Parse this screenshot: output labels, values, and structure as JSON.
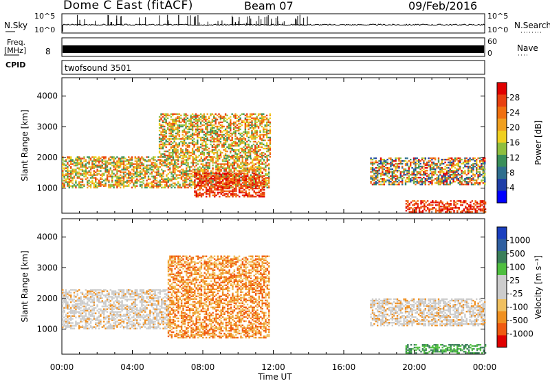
{
  "header": {
    "radar": "Dome C East (fitACF)",
    "beam": "Beam 07",
    "date": "09/Feb/2016"
  },
  "aux_panels": {
    "nsky_label": "N.Sky",
    "nsky_top": "10^5",
    "nsky_bottom": "10^0",
    "nsearch_label": "N.Search",
    "nsearch_top": "10^5",
    "nsearch_bottom": "10^0",
    "freq_label": "Freq.",
    "freq_unit": "[MHz]",
    "freq_value": "8",
    "nave_label": "Nave",
    "nave_top": "60",
    "nave_bottom": "0",
    "cpid_label": "CPID",
    "cpid_value": "twofsound 3501"
  },
  "colors": {
    "power_scale": [
      "#0000ff",
      "#1f3fa8",
      "#2e6e8e",
      "#3a8f5a",
      "#8fbf3f",
      "#f0d020",
      "#f0a020",
      "#f07010",
      "#e84010",
      "#e00000"
    ],
    "velocity_scale": [
      "#e00000",
      "#f05a10",
      "#f09020",
      "#f0c060",
      "#cccccc",
      "#cccccc",
      "#4fbf3f",
      "#3a7f5a",
      "#2f5fa0",
      "#1a3fbf"
    ]
  },
  "chart_data": [
    {
      "type": "heatmap",
      "name": "power",
      "ylabel": "Slant Range [km]",
      "yticks": [
        "1000",
        "2000",
        "3000",
        "4000"
      ],
      "ylim": [
        180,
        4600
      ],
      "xlim": [
        "00:00",
        "24:00"
      ],
      "colorbar_label": "Power [dB]",
      "colorbar_ticks": [
        "4",
        "8",
        "12",
        "16",
        "20",
        "24",
        "28"
      ],
      "colorbar_range": [
        0,
        32
      ],
      "regions": [
        {
          "t0": 0.0,
          "t1": 11.8,
          "r0": 1000,
          "r1": 2000,
          "level": "green-orange"
        },
        {
          "t0": 5.5,
          "t1": 11.8,
          "r0": 2000,
          "r1": 3400,
          "level": "green-orange"
        },
        {
          "t0": 7.5,
          "t1": 11.5,
          "r0": 700,
          "r1": 1500,
          "level": "red"
        },
        {
          "t0": 17.5,
          "t1": 24.0,
          "r0": 1100,
          "r1": 2000,
          "level": "blue-green-red"
        },
        {
          "t0": 19.5,
          "t1": 24.0,
          "r0": 200,
          "r1": 600,
          "level": "red"
        }
      ]
    },
    {
      "type": "heatmap",
      "name": "velocity",
      "ylabel": "Slant Range [km]",
      "yticks": [
        "1000",
        "2000",
        "3000",
        "4000"
      ],
      "ylim": [
        180,
        4600
      ],
      "xlabel": "Time UT",
      "xticks": [
        "00:00",
        "04:00",
        "08:00",
        "12:00",
        "16:00",
        "20:00",
        "00:00"
      ],
      "colorbar_label": "Velocity [m s⁻¹]",
      "colorbar_ticks": [
        "1000",
        "500",
        "100",
        "25",
        "-25",
        "-100",
        "-500",
        "-1000"
      ],
      "regions": [
        {
          "t0": 0.0,
          "t1": 6.0,
          "r0": 1000,
          "r1": 2300,
          "level": "grey"
        },
        {
          "t0": 6.0,
          "t1": 11.8,
          "r0": 700,
          "r1": 3400,
          "level": "orange"
        },
        {
          "t0": 17.5,
          "t1": 24.0,
          "r0": 1100,
          "r1": 2000,
          "level": "grey"
        },
        {
          "t0": 19.5,
          "t1": 24.0,
          "r0": 200,
          "r1": 500,
          "level": "green"
        }
      ]
    }
  ]
}
